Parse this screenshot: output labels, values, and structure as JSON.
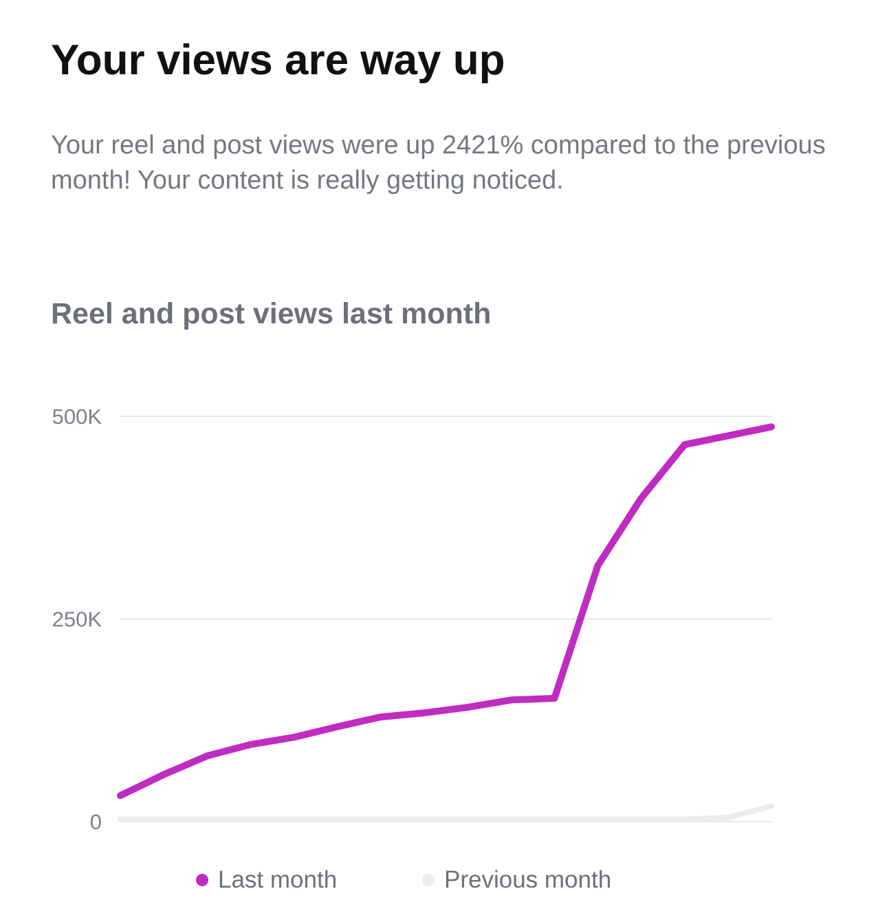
{
  "header": {
    "title": "Your views are way up",
    "description": "Your reel and post views were up 2421% compared to the previous month! Your content is really getting noticed."
  },
  "chart_data": {
    "type": "line",
    "title": "Reel and post views last month",
    "xlabel": "",
    "ylabel": "",
    "ylim": [
      0,
      500000
    ],
    "yticks": [
      {
        "value": 0,
        "label": "0"
      },
      {
        "value": 250000,
        "label": "250K"
      },
      {
        "value": 500000,
        "label": "500K"
      }
    ],
    "grid": true,
    "legend_position": "bottom",
    "x": [
      1,
      2,
      3,
      4,
      5,
      6,
      7,
      8,
      9,
      10,
      11,
      12,
      13,
      14,
      15,
      16
    ],
    "series": [
      {
        "name": "Last month",
        "color": "#c02bc2",
        "values": [
          32000,
          58000,
          81000,
          95000,
          104000,
          117000,
          129000,
          134000,
          141000,
          150000,
          152000,
          316000,
          399000,
          465000,
          476000,
          487000
        ]
      },
      {
        "name": "Previous month",
        "color": "#ececee",
        "values": [
          3000,
          3000,
          3000,
          3000,
          3000,
          3000,
          3000,
          3000,
          3000,
          3000,
          3000,
          3000,
          3000,
          3000,
          5000,
          19000
        ]
      }
    ]
  }
}
